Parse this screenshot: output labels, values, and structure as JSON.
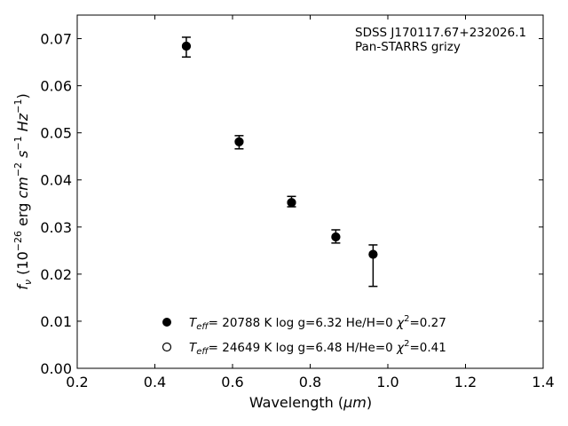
{
  "chart_data": {
    "type": "scatter",
    "xlabel": "Wavelength (",
    "xlabel_unit": "μm",
    "xlabel_close": ")",
    "ylabel": "f",
    "ylabel_sub": "ν",
    "ylabel_open": " (10",
    "ylabel_exp26": "−26",
    "ylabel_erg": " erg ",
    "ylabel_cm": "cm",
    "ylabel_exp2": "−2",
    "ylabel_s": "s",
    "ylabel_exp1": "−1",
    "ylabel_hz": "Hz",
    "ylabel_exp1b": "−1",
    "ylabel_close": ")",
    "xlim": [
      0.2,
      1.4
    ],
    "ylim": [
      0.0,
      0.075
    ],
    "x_ticks": [
      0.2,
      0.4,
      0.6,
      0.8,
      1.0,
      1.2,
      1.4
    ],
    "x_tick_labels": [
      "0.2",
      "0.4",
      "0.6",
      "0.8",
      "1.0",
      "1.2",
      "1.4"
    ],
    "y_ticks": [
      0.0,
      0.01,
      0.02,
      0.03,
      0.04,
      0.05,
      0.06,
      0.07
    ],
    "y_tick_labels": [
      "0.00",
      "0.01",
      "0.02",
      "0.03",
      "0.04",
      "0.05",
      "0.06",
      "0.07"
    ],
    "grid": false,
    "legend_position": "bottom-center",
    "annotation": {
      "line1": "SDSS J170117.67+232026.1",
      "line2": "Pan-STARRS grizy"
    },
    "observed": {
      "x": [
        0.481,
        0.617,
        0.752,
        0.866,
        0.962
      ],
      "y": [
        0.0683,
        0.048,
        0.0353,
        0.028,
        0.024
      ],
      "yerr_low": [
        0.0022,
        0.0014,
        0.001,
        0.0014,
        0.0066
      ],
      "yerr_high": [
        0.002,
        0.0014,
        0.0012,
        0.0014,
        0.0022
      ]
    },
    "series": [
      {
        "marker": "filled",
        "teff_symbol": "T",
        "teff_sub": "eff",
        "label_rest": "= 20788 K  log g=6.32  He/H=0  ",
        "chi_symbol": "χ",
        "chi_sup": "2",
        "chi_value": "=0.27",
        "model_x": [
          0.481,
          0.617,
          0.752,
          0.866,
          0.962
        ],
        "model_y": [
          0.0684,
          0.0481,
          0.0352,
          0.0279,
          0.0242
        ]
      },
      {
        "marker": "open",
        "teff_symbol": "T",
        "teff_sub": "eff",
        "label_rest": "= 24649 K  log g=6.48  H/He=0  ",
        "chi_symbol": "χ",
        "chi_sup": "2",
        "chi_value": "=0.41",
        "model_x": [
          0.481,
          0.617,
          0.752,
          0.866,
          0.962
        ],
        "model_y": [
          0.0684,
          0.0481,
          0.0352,
          0.0279,
          0.0242
        ]
      }
    ]
  }
}
